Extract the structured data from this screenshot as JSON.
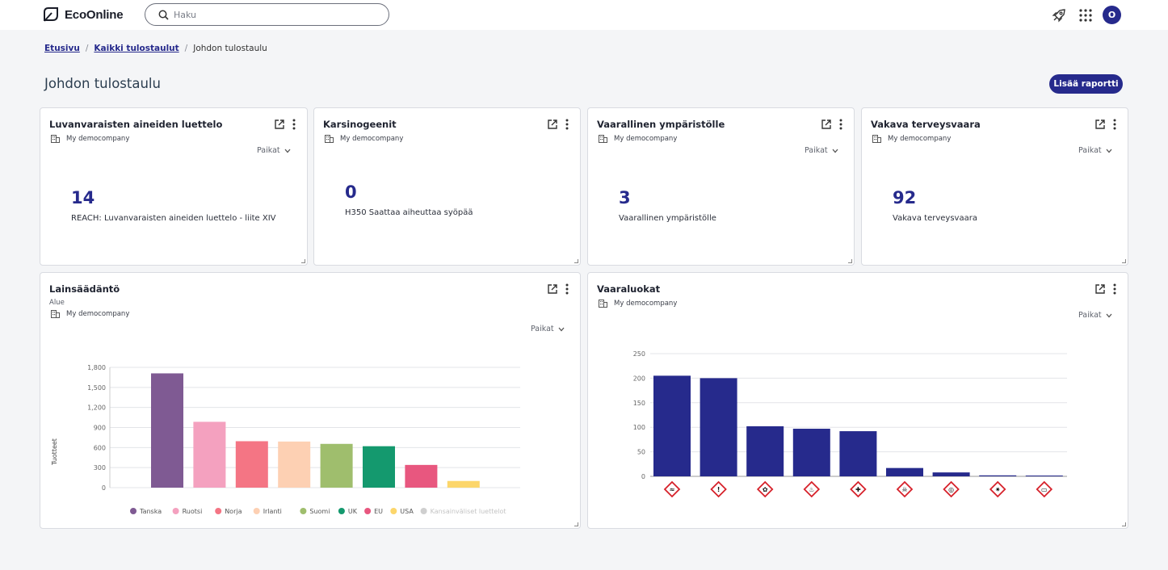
{
  "header": {
    "brand": "EcoOnline",
    "search_placeholder": "Haku",
    "avatar_initial": "O"
  },
  "breadcrumb": {
    "home": "Etusivu",
    "all": "Kaikki tulostaulut",
    "current": "Johdon tulostaulu",
    "separator": "/"
  },
  "page": {
    "title": "Johdon tulostaulu",
    "add_report_label": "Lisää raportti"
  },
  "common": {
    "company": "My democompany",
    "places_label": "Paikat"
  },
  "kpis": [
    {
      "title": "Luvanvaraisten aineiden luettelo",
      "value": "14",
      "label": "REACH: Luvanvaraisten aineiden luettelo - liite XIV"
    },
    {
      "title": "Karsinogeenit",
      "value": "0",
      "label": "H350 Saattaa aiheuttaa syöpää"
    },
    {
      "title": "Vaarallinen ympäristölle",
      "value": "3",
      "label": "Vaarallinen ympäristölle"
    },
    {
      "title": "Vakava terveysvaara",
      "value": "92",
      "label": "Vakava terveysvaara"
    }
  ],
  "legislation_card": {
    "title": "Lainsäädäntö",
    "subtitle": "Alue"
  },
  "hazard_card": {
    "title": "Vaaraluokat"
  },
  "chart_data": [
    {
      "type": "bar",
      "ylabel": "Tuotteet",
      "ylim": [
        0,
        1800
      ],
      "yticks": [
        "0",
        "300",
        "600",
        "900",
        "1,200",
        "1,500",
        "1,800"
      ],
      "categories": [
        "Tanska",
        "Ruotsi",
        "Norja",
        "Irlanti",
        "Suomi",
        "UK",
        "EU",
        "USA",
        "Kansainväliset luettelot"
      ],
      "values": [
        1710,
        985,
        695,
        690,
        655,
        620,
        340,
        100,
        0
      ],
      "colors": [
        "#7f5a93",
        "#f4a1bf",
        "#f47584",
        "#fdd0b3",
        "#9fbe6d",
        "#14996e",
        "#e8577f",
        "#fcd66b",
        "#cfcfcf"
      ],
      "legend_position": "bottom",
      "legend_inactive": [
        "Kansainväliset luettelot"
      ],
      "grid": true
    },
    {
      "type": "bar",
      "ylim": [
        0,
        250
      ],
      "yticks": [
        "0",
        "50",
        "100",
        "150",
        "200",
        "250"
      ],
      "categories": [
        "GHS05",
        "GHS07",
        "GHS09",
        "GHS02",
        "GHS08",
        "GHS06",
        "GHS03",
        "GHS01",
        "GHS04"
      ],
      "category_icons": [
        "corrosion-icon",
        "exclamation-icon",
        "environment-icon",
        "flame-icon",
        "health-hazard-icon",
        "skull-icon",
        "oxidizer-icon",
        "exploding-bomb-icon",
        "gas-cylinder-icon"
      ],
      "values": [
        205,
        200,
        102,
        97,
        92,
        17,
        8,
        2,
        1
      ],
      "color": "#262a8c",
      "grid": true
    }
  ]
}
